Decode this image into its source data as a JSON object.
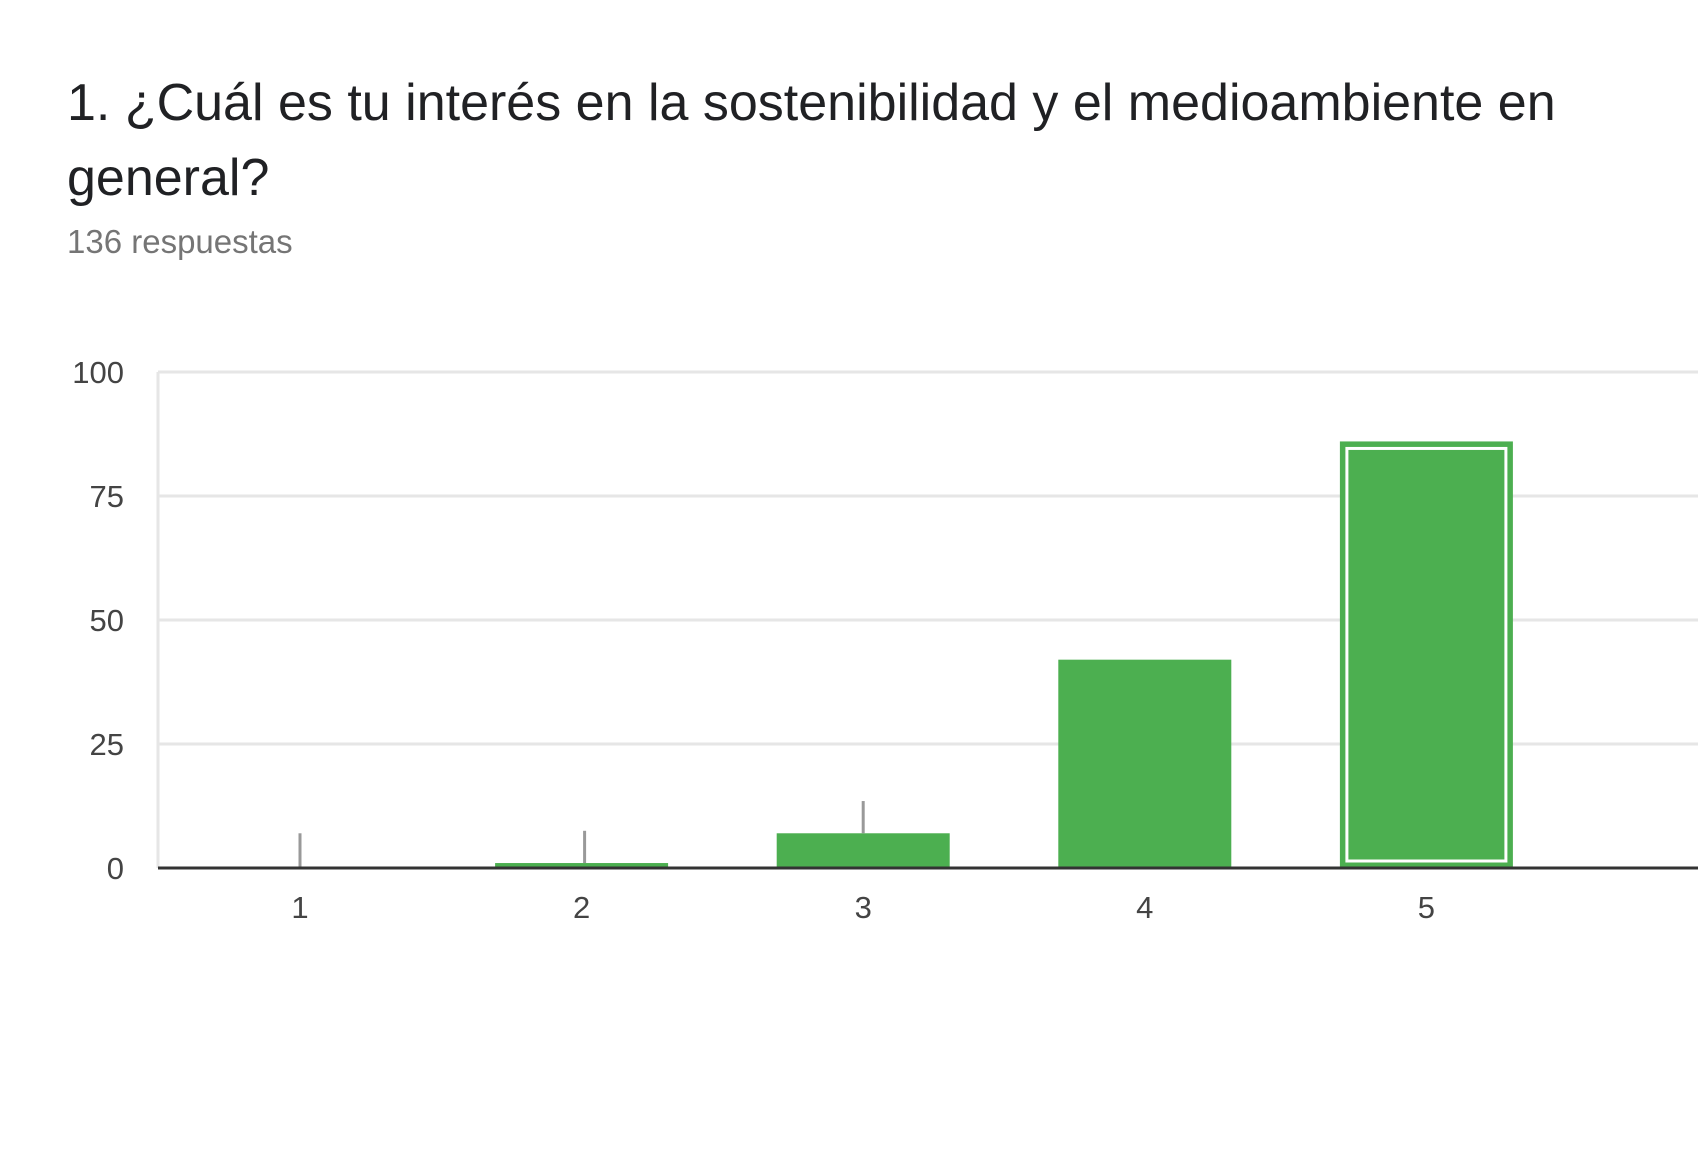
{
  "question": {
    "title": "1. ¿Cuál es tu interés en la sostenibilidad y el medioambiente en general?",
    "response_count": "136 respuestas"
  },
  "colors": {
    "bar": "#4CAF50",
    "highlight_border": "#ffffff",
    "gridline": "#e6e6e6",
    "baseline": "#333333",
    "error_bar": "#999999",
    "tick_text": "#444444"
  },
  "chart_data": {
    "type": "bar",
    "categories": [
      "1",
      "2",
      "3",
      "4",
      "5"
    ],
    "values": [
      0,
      1,
      7,
      42,
      86
    ],
    "error_bar_tops": [
      7,
      7.5,
      13.5,
      null,
      null
    ],
    "highlighted_index": 4,
    "title": "",
    "xlabel": "",
    "ylabel": "",
    "ylim": [
      0,
      100
    ],
    "yticks": [
      0,
      25,
      50,
      75,
      100
    ],
    "grid": true,
    "legend": "none"
  }
}
